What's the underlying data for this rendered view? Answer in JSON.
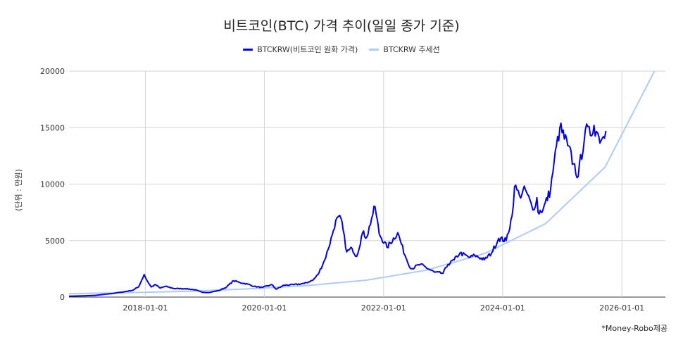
{
  "chart_data": {
    "type": "line",
    "title": "비트코인(BTC) 가격 추이(일일 종가 기준)",
    "xlabel": "",
    "ylabel": "(단위 : 만원)",
    "source": "*Money-Robo제공",
    "legend_position": "top-center",
    "grid": true,
    "xlim": [
      "2016-09-20",
      "2026-09-25"
    ],
    "ylim": [
      0,
      20000
    ],
    "y_ticks": [
      0,
      5000,
      10000,
      15000,
      20000
    ],
    "x_ticks": [
      "2018-01-01",
      "2020-01-01",
      "2022-01-01",
      "2024-01-01",
      "2026-01-01"
    ],
    "series": [
      {
        "name": "BTCKRW(비트코인 원화 가격)",
        "color": "#0000ee",
        "x": [
          "2016-09-20",
          "2016-12-01",
          "2017-03-01",
          "2017-06-01",
          "2017-08-15",
          "2017-10-15",
          "2017-11-20",
          "2017-12-10",
          "2017-12-25",
          "2018-01-10",
          "2018-02-06",
          "2018-03-05",
          "2018-04-01",
          "2018-05-05",
          "2018-06-30",
          "2018-09-01",
          "2018-11-01",
          "2018-12-15",
          "2019-02-01",
          "2019-04-01",
          "2019-05-15",
          "2019-06-26",
          "2019-08-01",
          "2019-09-20",
          "2019-10-30",
          "2019-12-20",
          "2020-02-15",
          "2020-03-13",
          "2020-05-01",
          "2020-07-01",
          "2020-09-01",
          "2020-10-25",
          "2020-11-25",
          "2021-01-05",
          "2021-01-25",
          "2021-02-20",
          "2021-03-14",
          "2021-04-14",
          "2021-05-20",
          "2021-06-22",
          "2021-07-20",
          "2021-08-25",
          "2021-09-20",
          "2021-10-20",
          "2021-11-10",
          "2021-12-05",
          "2022-01-22",
          "2022-03-29",
          "2022-05-12",
          "2022-06-18",
          "2022-08-14",
          "2022-11-09",
          "2022-12-31",
          "2023-01-31",
          "2023-03-10",
          "2023-04-14",
          "2023-06-15",
          "2023-07-14",
          "2023-09-11",
          "2023-10-25",
          "2023-12-08",
          "2024-01-23",
          "2024-02-28",
          "2024-03-14",
          "2024-04-13",
          "2024-05-20",
          "2024-07-05",
          "2024-07-29",
          "2024-08-05",
          "2024-09-06",
          "2024-10-21",
          "2024-11-12",
          "2024-12-17",
          "2025-02-03",
          "2025-03-10",
          "2025-04-09",
          "2025-05-22",
          "2025-06-22",
          "2025-07-14",
          "2025-08-13",
          "2025-09-01",
          "2025-09-25"
        ],
        "values": [
          80,
          100,
          150,
          300,
          450,
          600,
          900,
          1500,
          2000,
          1500,
          900,
          1100,
          800,
          950,
          750,
          750,
          650,
          420,
          420,
          600,
          900,
          1450,
          1300,
          1150,
          950,
          850,
          1100,
          700,
          1050,
          1100,
          1200,
          1500,
          2000,
          3300,
          4200,
          5500,
          6800,
          7000,
          4000,
          4300,
          3600,
          5700,
          5300,
          7000,
          8000,
          5600,
          4400,
          5700,
          3700,
          2500,
          2900,
          2200,
          2100,
          2900,
          3300,
          3900,
          3500,
          3700,
          3300,
          3900,
          5200,
          5000,
          7200,
          9800,
          9000,
          9500,
          7700,
          8800,
          7500,
          7800,
          9500,
          12000,
          15000,
          13400,
          11800,
          10700,
          14800,
          14300,
          15200,
          14200,
          14000,
          14700
        ]
      },
      {
        "name": "BTCKRW 추세선",
        "color": "#aecbfa",
        "trend": "exponential",
        "x": [
          "2016-09-20",
          "2017-09-20",
          "2018-09-20",
          "2019-09-20",
          "2020-09-20",
          "2021-09-20",
          "2022-09-20",
          "2023-09-20",
          "2024-09-20",
          "2025-09-20",
          "2026-07-20"
        ],
        "values": [
          300,
          390,
          520,
          720,
          1020,
          1500,
          2380,
          3900,
          6500,
          11500,
          20000
        ]
      }
    ]
  }
}
